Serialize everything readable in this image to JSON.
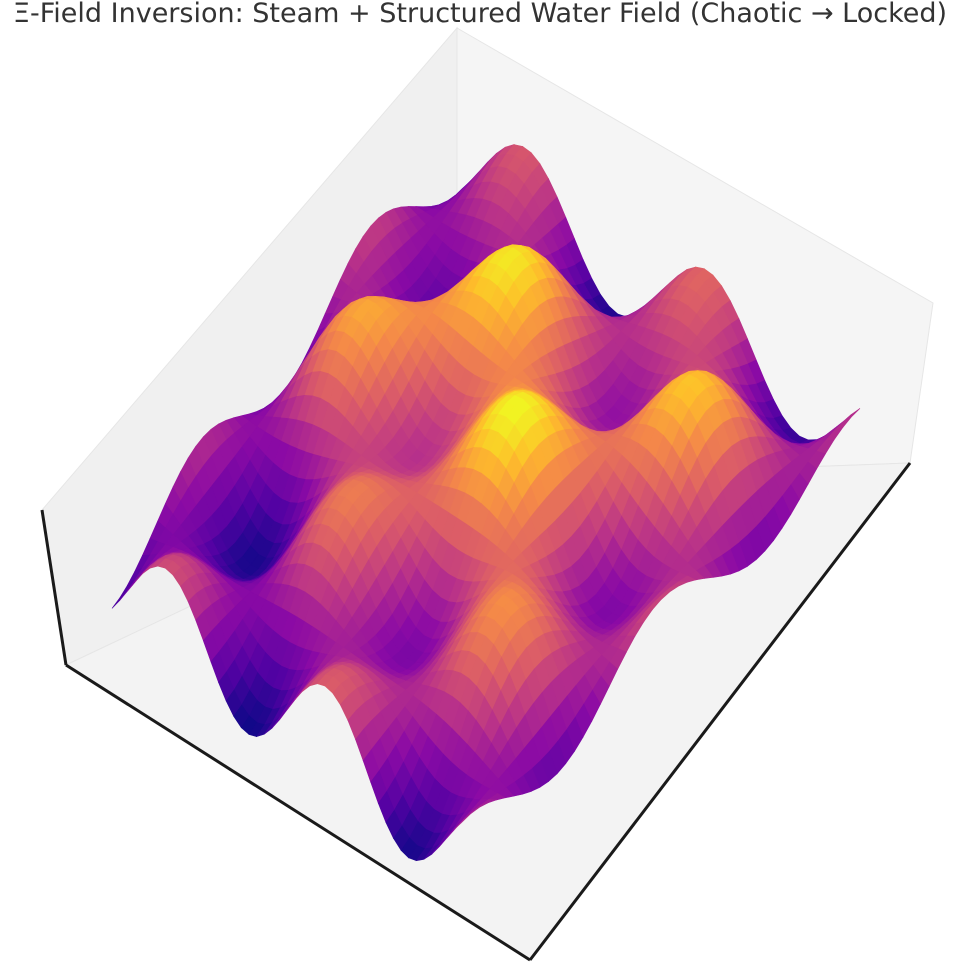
{
  "chart_data": {
    "type": "surface3d",
    "title": "Ξ-Field Inversion: Steam + Structured Water Field (Chaotic → Locked)",
    "xlabel": "",
    "ylabel": "",
    "zlabel": "",
    "colormap": "plasma",
    "axes_visible": false,
    "pane_color": "#f2f2f2",
    "axis_line_color": "#1a1a1a",
    "surface_description_terms": [
      {
        "kind": "sin_x_cos_y",
        "amplitude": 1.0,
        "fx": 1.0,
        "fy": 1.0
      },
      {
        "kind": "gaussian_peak",
        "amplitude": 1.4,
        "cx": -0.35,
        "cy": 0.25,
        "width": 0.35
      },
      {
        "kind": "gaussian_peak",
        "amplitude": 1.1,
        "cx": 0.35,
        "cy": -0.2,
        "width": 0.4
      },
      {
        "kind": "gaussian_peak",
        "amplitude": 0.9,
        "cx": 0.55,
        "cy": 0.55,
        "width": 0.3
      }
    ]
  }
}
